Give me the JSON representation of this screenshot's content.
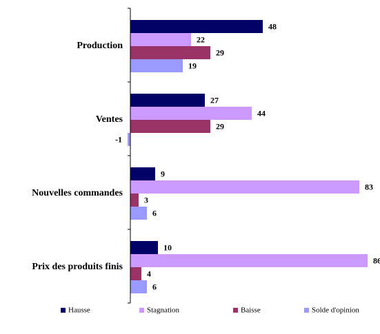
{
  "chart_data": {
    "type": "hbar",
    "categories": [
      "Production",
      "Ventes",
      "Nouvelles commandes",
      "Prix des produits finis"
    ],
    "series": [
      {
        "name": "Hausse",
        "color": "#000066",
        "values": [
          48,
          27,
          9,
          10
        ]
      },
      {
        "name": "Stagnation",
        "color": "#cc99ff",
        "values": [
          22,
          44,
          83,
          86
        ]
      },
      {
        "name": "Baisse",
        "color": "#993366",
        "values": [
          29,
          29,
          3,
          4
        ]
      },
      {
        "name": "Solde d'opinion",
        "color": "#9999ff",
        "values": [
          19,
          -1,
          6,
          6
        ]
      }
    ],
    "xlim": [
      -1,
      90
    ],
    "legend": "bottom"
  }
}
